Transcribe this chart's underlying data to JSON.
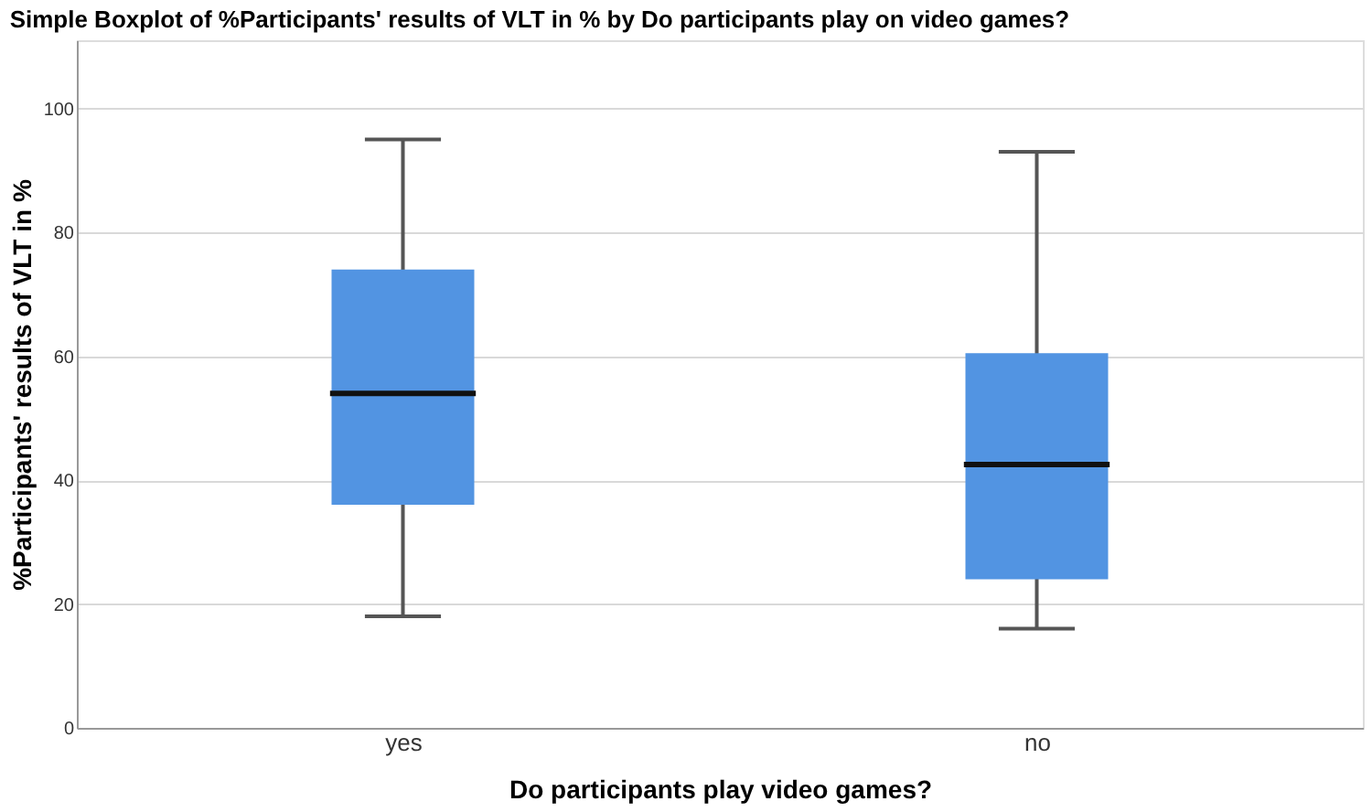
{
  "chart_data": {
    "type": "box",
    "title": "Simple Boxplot of %Participants' results of VLT in % by Do participants play on video games?",
    "xlabel": "Do participants play  video games?",
    "ylabel": "%Participants' results of VLT in %",
    "categories": [
      "yes",
      "no"
    ],
    "boxes": [
      {
        "low": 18,
        "q1": 36,
        "median": 54,
        "q3": 74,
        "high": 95
      },
      {
        "low": 16,
        "q1": 24,
        "median": 42.5,
        "q3": 60.5,
        "high": 93
      }
    ],
    "color": "#5294e2",
    "ylim": [
      0,
      111
    ],
    "yticks": [
      0,
      20,
      40,
      60,
      80,
      100
    ],
    "grid": "y"
  }
}
